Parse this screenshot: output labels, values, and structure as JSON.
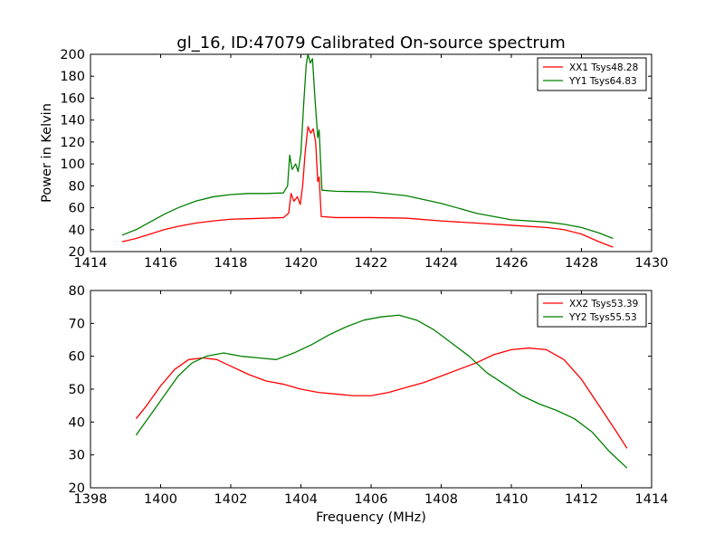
{
  "chart_data": [
    {
      "type": "line",
      "title": "gl_16, ID:47079 Calibrated On-source spectrum",
      "xlabel": "",
      "ylabel": "Power in Kelvin",
      "xlim": [
        1414,
        1430
      ],
      "ylim": [
        20,
        200
      ],
      "xticks": [
        1414,
        1416,
        1418,
        1420,
        1422,
        1424,
        1426,
        1428,
        1430
      ],
      "yticks": [
        20,
        40,
        60,
        80,
        100,
        120,
        140,
        160,
        180,
        200
      ],
      "legend_position": "top-right",
      "series": [
        {
          "name": "XX1 Tsys48.28",
          "color": "#ff0000",
          "points": [
            [
              1414.9,
              29
            ],
            [
              1415.3,
              32
            ],
            [
              1415.7,
              36
            ],
            [
              1416.1,
              40
            ],
            [
              1416.5,
              43
            ],
            [
              1417.0,
              46
            ],
            [
              1417.5,
              48
            ],
            [
              1418.0,
              49.5
            ],
            [
              1418.5,
              50
            ],
            [
              1419.0,
              50.5
            ],
            [
              1419.5,
              51
            ],
            [
              1419.65,
              55
            ],
            [
              1419.72,
              73
            ],
            [
              1419.8,
              66
            ],
            [
              1419.9,
              70
            ],
            [
              1419.98,
              63
            ],
            [
              1420.05,
              80
            ],
            [
              1420.12,
              110
            ],
            [
              1420.2,
              134
            ],
            [
              1420.28,
              128
            ],
            [
              1420.35,
              132
            ],
            [
              1420.42,
              120
            ],
            [
              1420.48,
              84
            ],
            [
              1420.52,
              88
            ],
            [
              1420.58,
              52
            ],
            [
              1421.0,
              51
            ],
            [
              1422.0,
              51
            ],
            [
              1423.0,
              50.5
            ],
            [
              1424.0,
              48
            ],
            [
              1425.0,
              46
            ],
            [
              1426.0,
              44
            ],
            [
              1427.0,
              42
            ],
            [
              1427.5,
              40
            ],
            [
              1428.0,
              36
            ],
            [
              1428.5,
              29
            ],
            [
              1428.9,
              24
            ]
          ]
        },
        {
          "name": "YY1 Tsys64.83",
          "color": "#008000",
          "points": [
            [
              1414.9,
              35
            ],
            [
              1415.3,
              40
            ],
            [
              1415.7,
              47
            ],
            [
              1416.1,
              54
            ],
            [
              1416.5,
              60
            ],
            [
              1417.0,
              66
            ],
            [
              1417.5,
              70
            ],
            [
              1418.0,
              72
            ],
            [
              1418.5,
              73
            ],
            [
              1419.0,
              73
            ],
            [
              1419.5,
              73.5
            ],
            [
              1419.62,
              80
            ],
            [
              1419.68,
              108
            ],
            [
              1419.75,
              95
            ],
            [
              1419.85,
              100
            ],
            [
              1419.92,
              93
            ],
            [
              1420.0,
              110
            ],
            [
              1420.08,
              155
            ],
            [
              1420.15,
              190
            ],
            [
              1420.2,
              200
            ],
            [
              1420.27,
              192
            ],
            [
              1420.33,
              196
            ],
            [
              1420.4,
              160
            ],
            [
              1420.48,
              124
            ],
            [
              1420.52,
              131
            ],
            [
              1420.6,
              76
            ],
            [
              1421.0,
              75
            ],
            [
              1422.0,
              74.5
            ],
            [
              1423.0,
              71
            ],
            [
              1424.0,
              64
            ],
            [
              1425.0,
              55
            ],
            [
              1426.0,
              49
            ],
            [
              1427.0,
              47
            ],
            [
              1427.5,
              45
            ],
            [
              1428.0,
              42
            ],
            [
              1428.5,
              37
            ],
            [
              1428.9,
              32
            ]
          ]
        }
      ]
    },
    {
      "type": "line",
      "title": "",
      "xlabel": "Frequency (MHz)",
      "ylabel": "",
      "xlim": [
        1398,
        1414
      ],
      "ylim": [
        20,
        80
      ],
      "xticks": [
        1398,
        1400,
        1402,
        1404,
        1406,
        1408,
        1410,
        1412,
        1414
      ],
      "yticks": [
        20,
        30,
        40,
        50,
        60,
        70,
        80
      ],
      "legend_position": "top-right",
      "series": [
        {
          "name": "XX2 Tsys53.39",
          "color": "#ff0000",
          "points": [
            [
              1399.3,
              41
            ],
            [
              1399.6,
              45
            ],
            [
              1400.0,
              51
            ],
            [
              1400.4,
              56
            ],
            [
              1400.8,
              59
            ],
            [
              1401.2,
              59.5
            ],
            [
              1401.6,
              59
            ],
            [
              1402.0,
              57
            ],
            [
              1402.5,
              54.5
            ],
            [
              1403.0,
              52.5
            ],
            [
              1403.5,
              51.5
            ],
            [
              1404.0,
              50
            ],
            [
              1404.5,
              49
            ],
            [
              1405.0,
              48.5
            ],
            [
              1405.5,
              48
            ],
            [
              1406.0,
              48
            ],
            [
              1406.5,
              49
            ],
            [
              1407.0,
              50.5
            ],
            [
              1407.5,
              52
            ],
            [
              1408.0,
              54
            ],
            [
              1408.5,
              56
            ],
            [
              1409.0,
              58
            ],
            [
              1409.5,
              60.5
            ],
            [
              1410.0,
              62
            ],
            [
              1410.5,
              62.5
            ],
            [
              1411.0,
              62
            ],
            [
              1411.5,
              59
            ],
            [
              1412.0,
              53
            ],
            [
              1412.5,
              45
            ],
            [
              1413.0,
              37
            ],
            [
              1413.3,
              32
            ]
          ]
        },
        {
          "name": "YY2 Tsys55.53",
          "color": "#008000",
          "points": [
            [
              1399.3,
              36
            ],
            [
              1399.7,
              42
            ],
            [
              1400.1,
              48
            ],
            [
              1400.5,
              54
            ],
            [
              1400.9,
              58
            ],
            [
              1401.3,
              60
            ],
            [
              1401.8,
              61
            ],
            [
              1402.3,
              60
            ],
            [
              1402.8,
              59.5
            ],
            [
              1403.3,
              59
            ],
            [
              1403.8,
              61
            ],
            [
              1404.3,
              63.5
            ],
            [
              1404.8,
              66.5
            ],
            [
              1405.3,
              69
            ],
            [
              1405.8,
              71
            ],
            [
              1406.3,
              72
            ],
            [
              1406.8,
              72.5
            ],
            [
              1407.3,
              71
            ],
            [
              1407.8,
              68
            ],
            [
              1408.3,
              64
            ],
            [
              1408.8,
              60
            ],
            [
              1409.3,
              55
            ],
            [
              1409.8,
              51.5
            ],
            [
              1410.3,
              48
            ],
            [
              1410.8,
              45.5
            ],
            [
              1411.3,
              43.5
            ],
            [
              1411.8,
              41
            ],
            [
              1412.3,
              37
            ],
            [
              1412.8,
              31
            ],
            [
              1413.3,
              26
            ]
          ]
        }
      ]
    }
  ]
}
